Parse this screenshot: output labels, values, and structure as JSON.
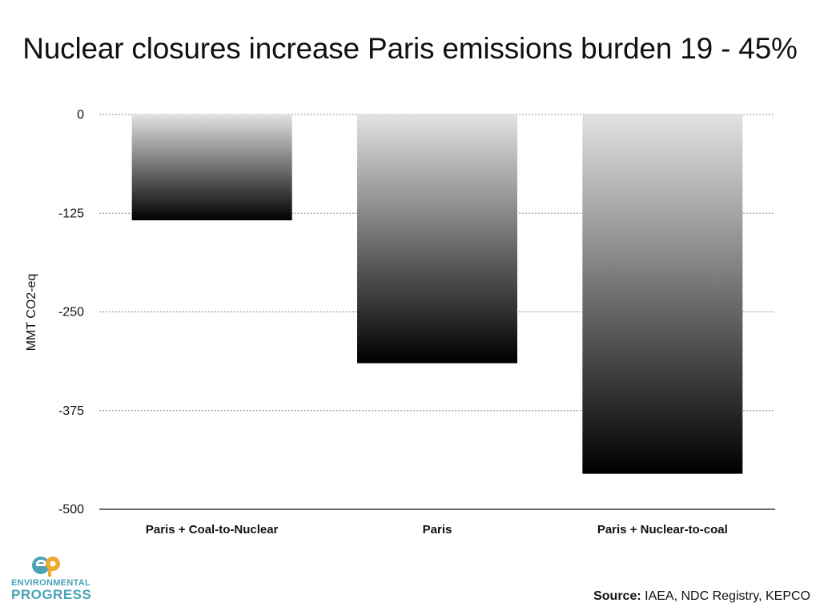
{
  "chart_data": {
    "type": "bar",
    "title": "Nuclear closures increase Paris emissions burden 19 - 45%",
    "ylabel": "MMT CO2-eq",
    "xlabel": "",
    "categories": [
      "Paris + Coal-to-Nuclear",
      "Paris",
      "Paris + Nuclear-to-coal"
    ],
    "values": [
      -134,
      -315,
      -455
    ],
    "ylim": [
      -500,
      0
    ],
    "yticks": [
      0,
      -125,
      -250,
      -375,
      -500
    ],
    "grid": true,
    "legend": "none",
    "bar_gradient": [
      "#e2e2e2",
      "#000000"
    ]
  },
  "source": {
    "label": "Source:",
    "text": "IAEA, NDC Registry, KEPCO"
  },
  "logo": {
    "mark": "ep",
    "line1": "ENVIRONMENTAL",
    "line2": "PROGRESS",
    "colors": {
      "teal": "#4aa3b8",
      "orange": "#f0a830"
    }
  }
}
